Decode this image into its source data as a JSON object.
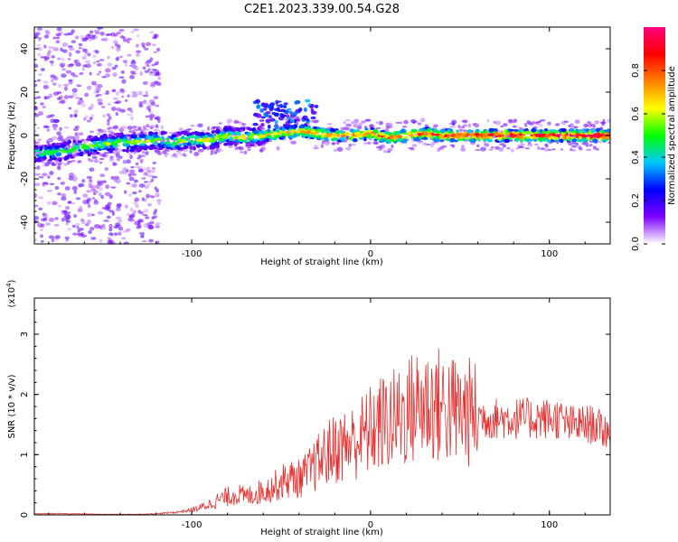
{
  "title": "C2E1.2023.339.00.54.G28",
  "chart_data": [
    {
      "type": "heatmap",
      "xlabel": "Height of straight line (km)",
      "ylabel": "Frequency (Hz)",
      "xlim": [
        -188,
        134
      ],
      "ylim": [
        -50,
        50
      ],
      "xticks": [
        -100,
        0,
        100
      ],
      "yticks": [
        -40,
        -20,
        0,
        20,
        40
      ],
      "ridge": [
        [
          -186,
          -8
        ],
        [
          -180,
          -8
        ],
        [
          -170,
          -7
        ],
        [
          -160,
          -5
        ],
        [
          -150,
          -4
        ],
        [
          -140,
          -3
        ],
        [
          -130,
          -3
        ],
        [
          -120,
          -2
        ],
        [
          -110,
          -3
        ],
        [
          -100,
          -2
        ],
        [
          -90,
          -2
        ],
        [
          -80,
          0
        ],
        [
          -70,
          -1
        ],
        [
          -60,
          0
        ],
        [
          -50,
          1
        ],
        [
          -40,
          2
        ],
        [
          -30,
          1
        ],
        [
          -20,
          0
        ],
        [
          -10,
          0
        ],
        [
          0,
          1
        ],
        [
          10,
          -1
        ],
        [
          20,
          0
        ],
        [
          30,
          1
        ],
        [
          40,
          0
        ],
        [
          50,
          0
        ],
        [
          60,
          0
        ],
        [
          70,
          0
        ],
        [
          80,
          0
        ],
        [
          90,
          0
        ],
        [
          100,
          0
        ],
        [
          110,
          0
        ],
        [
          120,
          0
        ],
        [
          130,
          0
        ]
      ],
      "colorbar": {
        "label": "Normalized spectral amplitude",
        "range": [
          0,
          1
        ],
        "ticks": [
          "0.0",
          "0.2",
          "0.4",
          "0.6",
          "0.8"
        ],
        "colors": [
          "#ffffff",
          "#7d00ff",
          "#0000ff",
          "#00c8ff",
          "#00ff00",
          "#ffff00",
          "#ff8000",
          "#ff0000",
          "#ff0080"
        ]
      },
      "grid": false,
      "legend": "none"
    },
    {
      "type": "line",
      "xlabel": "Height of straight line (km)",
      "ylabel": "SNR (10 * v/v)",
      "multiplier_label": "(x10",
      "multiplier_exp": "4",
      "multiplier_close": ")",
      "xlim": [
        -188,
        134
      ],
      "ylim": [
        0,
        3.6
      ],
      "xticks": [
        -100,
        0,
        100
      ],
      "yticks": [
        0,
        1,
        2,
        3
      ],
      "color": "#e83030",
      "series": [
        {
          "x": [
            -188,
            -170,
            -150,
            -130,
            -120,
            -110,
            -100,
            -95,
            -90,
            -85,
            -80,
            -75,
            -70,
            -65,
            -60,
            -55,
            -50,
            -45,
            -40,
            -35,
            -30,
            -25,
            -20,
            -15,
            -10,
            -5,
            0,
            5,
            10,
            15,
            20,
            25,
            30,
            35,
            40,
            45,
            50,
            55,
            60,
            65,
            70,
            75,
            80,
            85,
            90,
            95,
            100,
            105,
            110,
            115,
            120,
            125,
            130,
            134
          ],
          "values": [
            0.02,
            0.02,
            0.01,
            0.01,
            0.02,
            0.04,
            0.08,
            0.12,
            0.18,
            0.25,
            0.3,
            0.35,
            0.3,
            0.35,
            0.4,
            0.45,
            0.55,
            0.6,
            0.6,
            0.7,
            0.85,
            1.0,
            1.1,
            1.15,
            1.2,
            1.3,
            1.4,
            1.5,
            1.55,
            1.6,
            1.7,
            1.8,
            1.85,
            1.85,
            1.8,
            1.75,
            1.7,
            1.7,
            1.65,
            1.6,
            1.6,
            1.6,
            1.6,
            1.6,
            1.6,
            1.6,
            1.6,
            1.6,
            1.5,
            1.5,
            1.5,
            1.5,
            1.4,
            1.4
          ]
        }
      ],
      "grid": false,
      "legend": "none"
    }
  ]
}
